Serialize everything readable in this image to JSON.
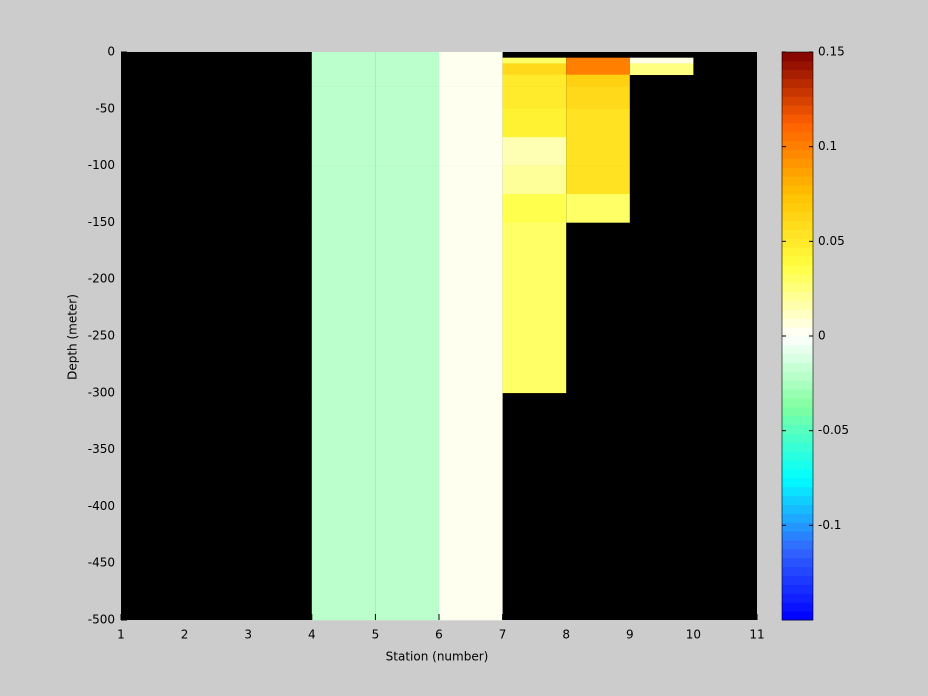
{
  "chart_data": {
    "type": "heatmap",
    "xlabel": "Station (number)",
    "ylabel": "Depth (meter)",
    "xlim": [
      1,
      11
    ],
    "xticks": [
      1,
      2,
      3,
      4,
      5,
      6,
      7,
      8,
      9,
      10,
      11
    ],
    "ylim": [
      -500,
      0
    ],
    "yticks": [
      0,
      -50,
      -100,
      -150,
      -200,
      -250,
      -300,
      -350,
      -400,
      -450,
      -500
    ],
    "x_edges": [
      1,
      2,
      3,
      4,
      5,
      6,
      7,
      8,
      9,
      10,
      11
    ],
    "y_edges": [
      0,
      -5,
      -10,
      -20,
      -30,
      -50,
      -75,
      -100,
      -125,
      -150,
      -300,
      -500
    ],
    "values": [
      [
        null,
        null,
        null,
        -0.02,
        -0.02,
        0.003,
        null,
        null,
        null,
        null
      ],
      [
        null,
        null,
        null,
        -0.02,
        -0.02,
        0.003,
        0.03,
        0.1,
        0.005,
        null
      ],
      [
        null,
        null,
        null,
        -0.02,
        -0.02,
        0.003,
        0.06,
        0.1,
        0.025,
        null
      ],
      [
        null,
        null,
        null,
        -0.02,
        -0.02,
        0.003,
        0.05,
        0.065,
        null,
        null
      ],
      [
        null,
        null,
        null,
        -0.02,
        -0.02,
        0.003,
        0.05,
        0.06,
        null,
        null
      ],
      [
        null,
        null,
        null,
        -0.02,
        -0.02,
        0.003,
        0.045,
        0.055,
        null,
        null
      ],
      [
        null,
        null,
        null,
        -0.02,
        -0.02,
        0.003,
        0.015,
        0.055,
        null,
        null
      ],
      [
        null,
        null,
        null,
        -0.02,
        -0.02,
        0.003,
        0.02,
        0.055,
        null,
        null
      ],
      [
        null,
        null,
        null,
        -0.02,
        -0.02,
        0.003,
        0.035,
        0.03,
        null,
        null
      ],
      [
        null,
        null,
        null,
        -0.02,
        -0.02,
        0.003,
        0.03,
        null,
        null,
        null
      ],
      [
        null,
        null,
        null,
        -0.02,
        -0.02,
        0.003,
        null,
        null,
        null,
        null
      ]
    ],
    "missing_color": "#000000",
    "clim": [
      -0.15,
      0.15
    ],
    "cticks": [
      0.15,
      0.1,
      0.05,
      0,
      -0.05,
      -0.1
    ],
    "colormap": [
      "#0000ff",
      "#3366ff",
      "#00ffff",
      "#80ffa0",
      "#ffffff",
      "#ffff40",
      "#ffc000",
      "#ff6000",
      "#800000"
    ]
  }
}
